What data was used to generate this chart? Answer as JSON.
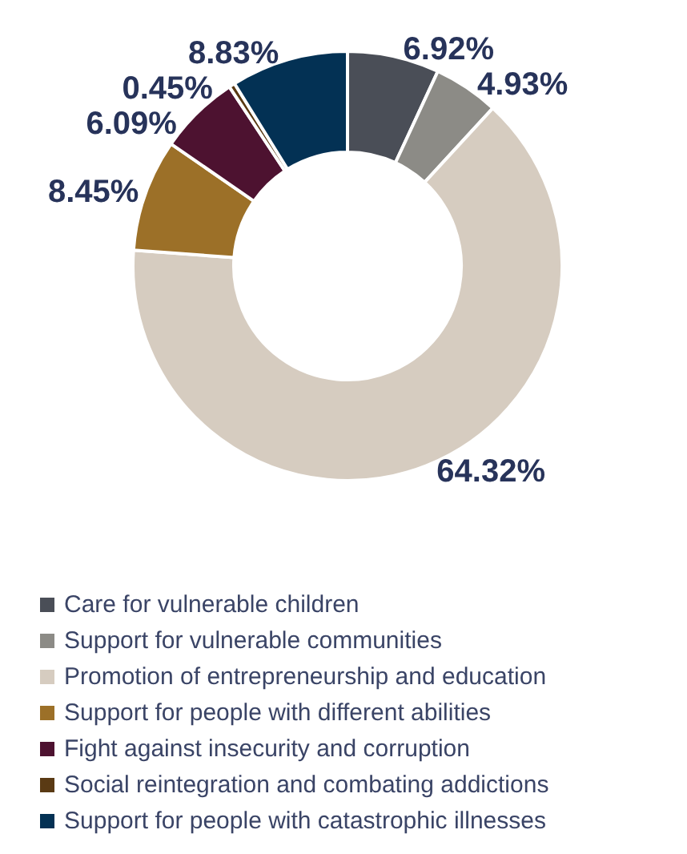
{
  "chart_data": {
    "type": "donut",
    "categories": [
      "Care for vulnerable children",
      "Support for vulnerable communities",
      "Promotion of entrepreneurship and education",
      "Support for people with different abilities",
      "Fight against insecurity and corruption",
      "Social reintegration and combating addictions",
      "Support for people with catastrophic illnesses"
    ],
    "values": [
      6.92,
      4.93,
      64.32,
      8.45,
      6.09,
      0.45,
      8.83
    ],
    "value_labels": [
      "6.92%",
      "4.93%",
      "64.32%",
      "8.45%",
      "6.09%",
      "0.45%",
      "8.83%"
    ],
    "colors": [
      "#4a4e57",
      "#8c8b86",
      "#d6ccc0",
      "#9c7028",
      "#4d1230",
      "#5a3a14",
      "#033154"
    ],
    "legend": "bottom left"
  }
}
